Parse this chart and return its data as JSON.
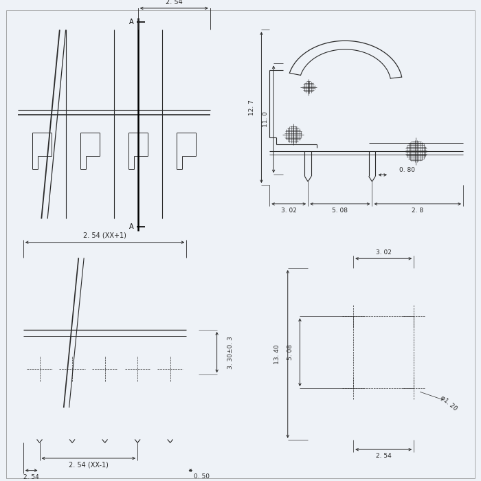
{
  "bg_color": "#eef2f7",
  "line_color": "#2a2a2a",
  "dim_color": "#2a2a2a",
  "annotations": {
    "top_left": {
      "dim_2_54": "2. 54",
      "section_A": "A"
    },
    "top_right": {
      "dim_12_7": "12. 7",
      "dim_11_0": "11. 0",
      "dim_3_02": "3. 02",
      "dim_5_08": "5. 08",
      "dim_2_8": "2. 8",
      "dim_0_80": "0. 80"
    },
    "bottom_left": {
      "dim_2_54_xx1": "2. 54 (XX+1)",
      "dim_2_54_xx_1": "2. 54 (XX-1)",
      "dim_2_54": "2. 54",
      "dim_0_50": "0. 50",
      "dim_3_30": "3. 30±0. 3"
    },
    "bottom_right": {
      "dim_3_02": "3. 02",
      "dim_5_08": "5. 08",
      "dim_13_40": "13. 40",
      "dim_2_54": "2. 54",
      "dim_phi_1_20": "φ1. 20"
    }
  }
}
